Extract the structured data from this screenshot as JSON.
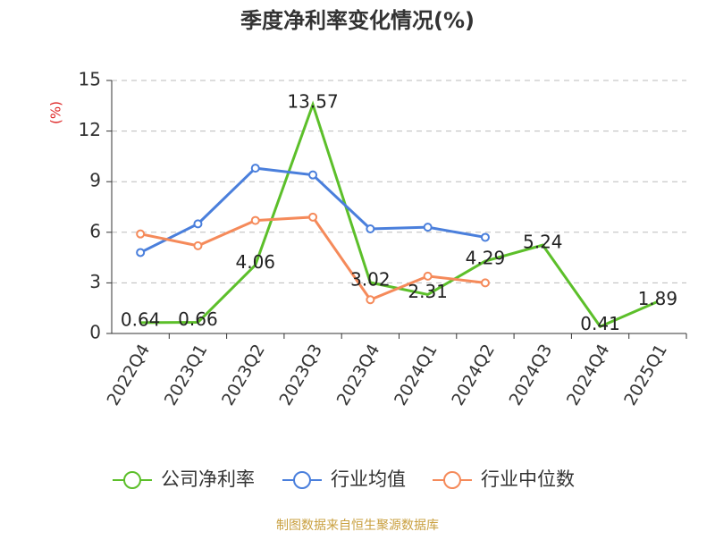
{
  "chart_data": {
    "type": "line",
    "title": "季度净利率变化情况(%)",
    "y_label": "(%)",
    "categories": [
      "2022Q4",
      "2023Q1",
      "2023Q2",
      "2023Q3",
      "2023Q4",
      "2024Q1",
      "2024Q2",
      "2024Q3",
      "2024Q4",
      "2025Q1"
    ],
    "series": [
      {
        "name": "公司净利率",
        "color": "#5cbf2a",
        "values": [
          0.64,
          0.66,
          4.06,
          13.57,
          3.02,
          2.31,
          4.29,
          5.24,
          0.41,
          1.89
        ],
        "markers": false,
        "data_labels": true
      },
      {
        "name": "行业均值",
        "color": "#4a7fdc",
        "values": [
          4.8,
          6.5,
          9.8,
          9.4,
          6.2,
          6.3,
          5.7,
          null,
          null,
          null
        ],
        "markers": true,
        "data_labels": false
      },
      {
        "name": "行业中位数",
        "color": "#f58a5a",
        "values": [
          5.9,
          5.2,
          6.7,
          6.9,
          2.0,
          3.4,
          3.0,
          null,
          null,
          null
        ],
        "markers": true,
        "data_labels": false
      }
    ],
    "ylim": [
      0,
      15
    ],
    "yticks": [
      0,
      3,
      6,
      9,
      12,
      15
    ],
    "grid": true,
    "legend": "bottom",
    "source": "制图数据来自恒生聚源数据库"
  }
}
